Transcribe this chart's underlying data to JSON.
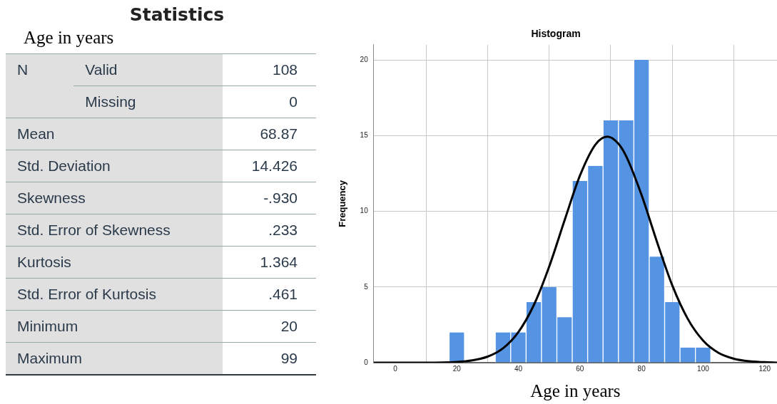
{
  "chart_data": [
    {
      "type": "other",
      "title": "Statistics",
      "subtitle": "Age in years",
      "y_categories": [
        "N",
        null,
        "Mean",
        "Std. Deviation",
        "Skewness",
        "Std. Error of Skewness",
        "Kurtosis",
        "Std. Error of Kurtosis",
        "Minimum",
        "Maximum"
      ],
      "y2_categories": [
        "Valid",
        "Missing",
        null,
        null,
        null,
        null,
        null,
        null,
        null,
        null
      ],
      "value_labels": [
        "108",
        "0",
        "68.87",
        "14.426",
        "-.930",
        ".233",
        "1.364",
        ".461",
        "20",
        "99"
      ]
    },
    {
      "type": "histogram",
      "title": "Histogram",
      "xlabel": "Age in years",
      "ylabel": "Frequency",
      "bins": [
        17.5,
        22.5,
        27.5,
        32.5,
        37.5,
        42.5,
        47.5,
        52.5,
        57.5,
        62.5,
        67.5,
        72.5,
        77.5,
        82.5,
        87.5,
        92.5,
        97.5,
        102.5
      ],
      "values": [
        2,
        0,
        0,
        2,
        2,
        4,
        5,
        3,
        12,
        13,
        16,
        16,
        20,
        7,
        4,
        1,
        1
      ],
      "color": "#5594e3",
      "series": [
        {
          "type": "line",
          "color": "#000000",
          "x": [
            -7,
            10,
            20,
            25,
            30,
            35,
            40,
            45,
            50,
            55,
            60,
            65,
            68.87,
            72.5,
            75,
            80,
            85,
            90,
            95,
            100,
            105,
            110,
            115,
            120,
            124
          ],
          "values": [
            0,
            0,
            0.05,
            0.15,
            0.4,
            0.95,
            2.02,
            3.8,
            6.34,
            9.4,
            12.36,
            14.4,
            14.93,
            14.46,
            13.64,
            11.08,
            7.99,
            5.1,
            2.9,
            1.46,
            0.65,
            0.26,
            0.09,
            0.03,
            0
          ]
        }
      ],
      "xlim": [
        -7,
        124
      ],
      "xticks": [
        0,
        20,
        40,
        60,
        80,
        100,
        120
      ],
      "ylim": [
        0,
        21
      ],
      "yticks": [
        0,
        5,
        10,
        15,
        20
      ],
      "grid": true,
      "marker": "none",
      "line_style": "solid"
    }
  ]
}
